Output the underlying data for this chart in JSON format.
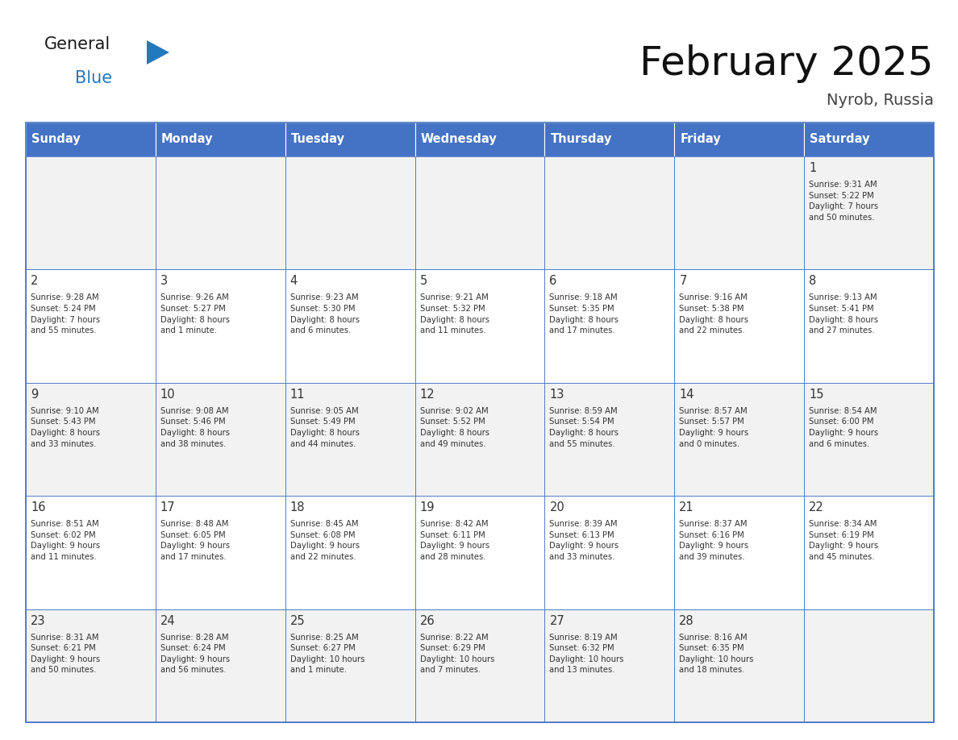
{
  "title": "February 2025",
  "subtitle": "Nyrob, Russia",
  "header_bg": "#4472C4",
  "header_text_color": "#FFFFFF",
  "cell_bg_odd": "#F2F2F2",
  "cell_bg_even": "#FFFFFF",
  "border_color": "#4472C4",
  "text_color": "#333333",
  "days_of_week": [
    "Sunday",
    "Monday",
    "Tuesday",
    "Wednesday",
    "Thursday",
    "Friday",
    "Saturday"
  ],
  "weeks": [
    [
      {
        "day": "",
        "info": ""
      },
      {
        "day": "",
        "info": ""
      },
      {
        "day": "",
        "info": ""
      },
      {
        "day": "",
        "info": ""
      },
      {
        "day": "",
        "info": ""
      },
      {
        "day": "",
        "info": ""
      },
      {
        "day": "1",
        "info": "Sunrise: 9:31 AM\nSunset: 5:22 PM\nDaylight: 7 hours\nand 50 minutes."
      }
    ],
    [
      {
        "day": "2",
        "info": "Sunrise: 9:28 AM\nSunset: 5:24 PM\nDaylight: 7 hours\nand 55 minutes."
      },
      {
        "day": "3",
        "info": "Sunrise: 9:26 AM\nSunset: 5:27 PM\nDaylight: 8 hours\nand 1 minute."
      },
      {
        "day": "4",
        "info": "Sunrise: 9:23 AM\nSunset: 5:30 PM\nDaylight: 8 hours\nand 6 minutes."
      },
      {
        "day": "5",
        "info": "Sunrise: 9:21 AM\nSunset: 5:32 PM\nDaylight: 8 hours\nand 11 minutes."
      },
      {
        "day": "6",
        "info": "Sunrise: 9:18 AM\nSunset: 5:35 PM\nDaylight: 8 hours\nand 17 minutes."
      },
      {
        "day": "7",
        "info": "Sunrise: 9:16 AM\nSunset: 5:38 PM\nDaylight: 8 hours\nand 22 minutes."
      },
      {
        "day": "8",
        "info": "Sunrise: 9:13 AM\nSunset: 5:41 PM\nDaylight: 8 hours\nand 27 minutes."
      }
    ],
    [
      {
        "day": "9",
        "info": "Sunrise: 9:10 AM\nSunset: 5:43 PM\nDaylight: 8 hours\nand 33 minutes."
      },
      {
        "day": "10",
        "info": "Sunrise: 9:08 AM\nSunset: 5:46 PM\nDaylight: 8 hours\nand 38 minutes."
      },
      {
        "day": "11",
        "info": "Sunrise: 9:05 AM\nSunset: 5:49 PM\nDaylight: 8 hours\nand 44 minutes."
      },
      {
        "day": "12",
        "info": "Sunrise: 9:02 AM\nSunset: 5:52 PM\nDaylight: 8 hours\nand 49 minutes."
      },
      {
        "day": "13",
        "info": "Sunrise: 8:59 AM\nSunset: 5:54 PM\nDaylight: 8 hours\nand 55 minutes."
      },
      {
        "day": "14",
        "info": "Sunrise: 8:57 AM\nSunset: 5:57 PM\nDaylight: 9 hours\nand 0 minutes."
      },
      {
        "day": "15",
        "info": "Sunrise: 8:54 AM\nSunset: 6:00 PM\nDaylight: 9 hours\nand 6 minutes."
      }
    ],
    [
      {
        "day": "16",
        "info": "Sunrise: 8:51 AM\nSunset: 6:02 PM\nDaylight: 9 hours\nand 11 minutes."
      },
      {
        "day": "17",
        "info": "Sunrise: 8:48 AM\nSunset: 6:05 PM\nDaylight: 9 hours\nand 17 minutes."
      },
      {
        "day": "18",
        "info": "Sunrise: 8:45 AM\nSunset: 6:08 PM\nDaylight: 9 hours\nand 22 minutes."
      },
      {
        "day": "19",
        "info": "Sunrise: 8:42 AM\nSunset: 6:11 PM\nDaylight: 9 hours\nand 28 minutes."
      },
      {
        "day": "20",
        "info": "Sunrise: 8:39 AM\nSunset: 6:13 PM\nDaylight: 9 hours\nand 33 minutes."
      },
      {
        "day": "21",
        "info": "Sunrise: 8:37 AM\nSunset: 6:16 PM\nDaylight: 9 hours\nand 39 minutes."
      },
      {
        "day": "22",
        "info": "Sunrise: 8:34 AM\nSunset: 6:19 PM\nDaylight: 9 hours\nand 45 minutes."
      }
    ],
    [
      {
        "day": "23",
        "info": "Sunrise: 8:31 AM\nSunset: 6:21 PM\nDaylight: 9 hours\nand 50 minutes."
      },
      {
        "day": "24",
        "info": "Sunrise: 8:28 AM\nSunset: 6:24 PM\nDaylight: 9 hours\nand 56 minutes."
      },
      {
        "day": "25",
        "info": "Sunrise: 8:25 AM\nSunset: 6:27 PM\nDaylight: 10 hours\nand 1 minute."
      },
      {
        "day": "26",
        "info": "Sunrise: 8:22 AM\nSunset: 6:29 PM\nDaylight: 10 hours\nand 7 minutes."
      },
      {
        "day": "27",
        "info": "Sunrise: 8:19 AM\nSunset: 6:32 PM\nDaylight: 10 hours\nand 13 minutes."
      },
      {
        "day": "28",
        "info": "Sunrise: 8:16 AM\nSunset: 6:35 PM\nDaylight: 10 hours\nand 18 minutes."
      },
      {
        "day": "",
        "info": ""
      }
    ]
  ],
  "logo_general_color": "#1a1a1a",
  "logo_blue_color": "#2179BE",
  "logo_triangle_color": "#2179BE",
  "fig_width": 11.88,
  "fig_height": 9.18,
  "dpi": 100
}
